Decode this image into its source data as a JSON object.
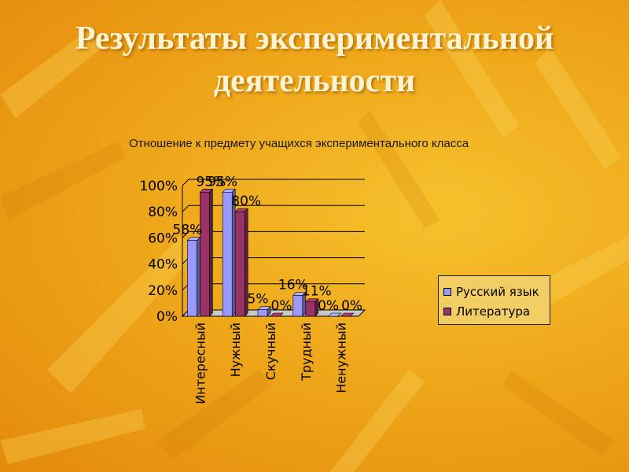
{
  "slide": {
    "title_line1": "Результаты экспериментальной",
    "title_line2": "деятельности"
  },
  "chart_data": {
    "type": "bar",
    "title": "Отношение к предмету учащихся экспериментального класса",
    "categories": [
      "Интересный",
      "Нужный",
      "Скучный",
      "Трудный",
      "Ненужный"
    ],
    "series": [
      {
        "name": "Русский язык",
        "values": [
          58,
          95,
          5,
          16,
          0
        ],
        "labels": [
          "58%",
          "95%",
          "5%",
          "16%",
          "0%"
        ],
        "color": "#9999ff"
      },
      {
        "name": "Литература",
        "values": [
          95,
          80,
          0,
          11,
          0
        ],
        "labels": [
          "95%",
          "80%",
          "0%",
          "11%",
          "0%"
        ],
        "color": "#993366"
      }
    ],
    "ylim": [
      0,
      100
    ],
    "yticks": [
      "0%",
      "20%",
      "40%",
      "60%",
      "80%",
      "100%"
    ],
    "grid": true,
    "legend_position": "right"
  }
}
